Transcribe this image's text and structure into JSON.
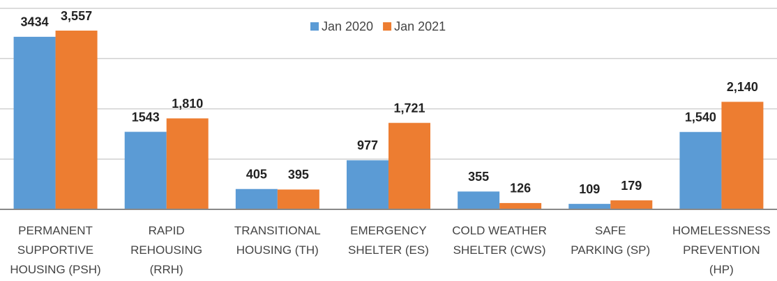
{
  "chart_data": {
    "type": "bar",
    "categories": [
      "PERMANENT\nSUPPORTIVE\nHOUSING (PSH)",
      "RAPID\nREHOUSING\n(RRH)",
      "TRANSITIONAL\nHOUSING (TH)",
      "EMERGENCY\nSHELTER (ES)",
      "COLD WEATHER\nSHELTER (CWS)",
      "SAFE\nPARKING (SP)",
      "HOMELESSNESS\nPREVENTION\n(HP)"
    ],
    "series": [
      {
        "name": "Jan 2020",
        "color": "#5b9bd5",
        "values": [
          3434,
          1543,
          405,
          977,
          355,
          109,
          1540
        ],
        "value_labels": [
          "3434",
          "1543",
          "405",
          "977",
          "355",
          "109",
          "1,540"
        ]
      },
      {
        "name": "Jan 2021",
        "color": "#ed7d31",
        "values": [
          3557,
          1810,
          395,
          1721,
          126,
          179,
          2140
        ],
        "value_labels": [
          "3,557",
          "1,810",
          "395",
          "1,721",
          "126",
          "179",
          "2,140"
        ]
      }
    ],
    "ylim": [
      0,
      4000
    ],
    "yticks": [
      0,
      1000,
      2000,
      3000,
      4000
    ],
    "grid": true,
    "legend": "top"
  }
}
